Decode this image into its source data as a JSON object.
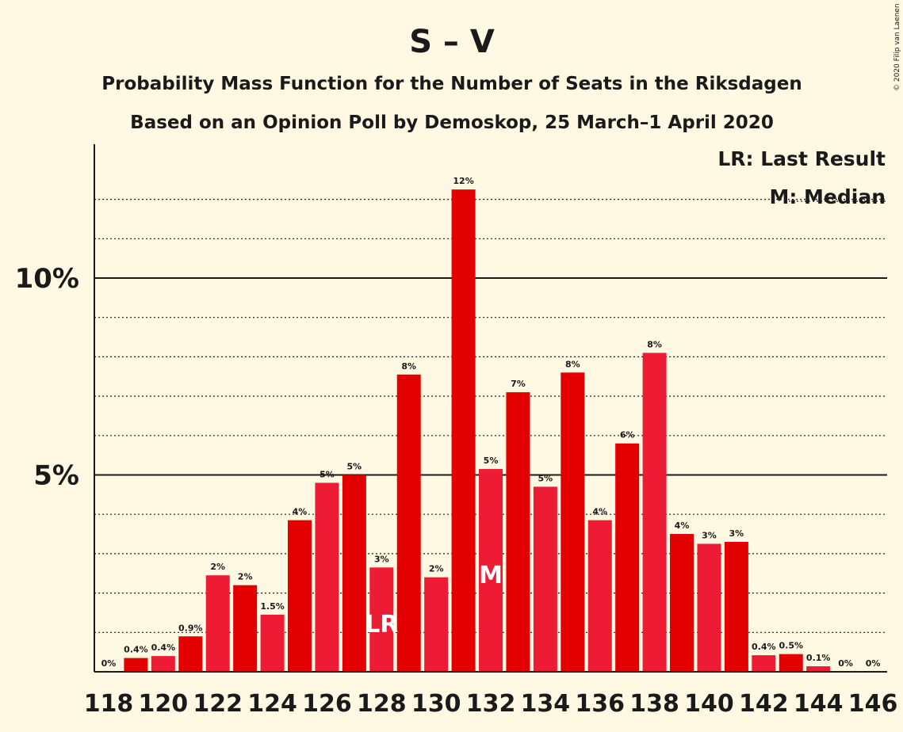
{
  "colors": {
    "background": "#fff8e2",
    "bar_dark": "#e30000",
    "bar_light": "#ee1b34",
    "text": "#1a1a1a",
    "marker_text": "#ffffff"
  },
  "copyright": "© 2020 Filip van Laenen",
  "chart_data": {
    "type": "bar",
    "title": "S – V",
    "subtitle": "Probability Mass Function for the Number of Seats in the Riksdagen",
    "subtitle2": "Based on an Opinion Poll by Demoskop, 25 March–1 April 2020",
    "xlabel": "",
    "ylabel": "",
    "ylim": [
      0,
      13.4
    ],
    "y_ticks": [
      {
        "value": 5,
        "label": "5%"
      },
      {
        "value": 10,
        "label": "10%"
      }
    ],
    "minor_gridlines": [
      1,
      2,
      3,
      4,
      6,
      7,
      8,
      9,
      11,
      12
    ],
    "legend_position": "top-right",
    "legend": [
      "LR: Last Result",
      "M: Median"
    ],
    "legend_line_dotted": "M: Median",
    "x_tick_labels": [
      "118",
      "120",
      "122",
      "124",
      "126",
      "128",
      "130",
      "132",
      "134",
      "136",
      "138",
      "140",
      "142",
      "144",
      "146"
    ],
    "categories": [
      118,
      119,
      120,
      121,
      122,
      123,
      124,
      125,
      126,
      127,
      128,
      129,
      130,
      131,
      132,
      133,
      134,
      135,
      136,
      137,
      138,
      139,
      140,
      141,
      142,
      143,
      144,
      145,
      146
    ],
    "values": [
      0,
      0.35,
      0.4,
      0.9,
      2.45,
      2.2,
      1.45,
      3.85,
      4.8,
      5.0,
      2.65,
      7.55,
      2.4,
      12.25,
      5.15,
      7.1,
      4.7,
      7.6,
      3.85,
      5.8,
      8.1,
      3.5,
      3.25,
      3.3,
      0.42,
      0.45,
      0.14,
      0,
      0
    ],
    "labels": [
      "0%",
      "0.4%",
      "0.4%",
      "0.9%",
      "2%",
      "2%",
      "1.5%",
      "4%",
      "5%",
      "5%",
      "3%",
      "8%",
      "2%",
      "12%",
      "5%",
      "7%",
      "5%",
      "8%",
      "4%",
      "6%",
      "8%",
      "4%",
      "3%",
      "3%",
      "0.4%",
      "0.5%",
      "0.1%",
      "0%",
      "0%"
    ],
    "markers": [
      {
        "seat": 128,
        "text": "LR"
      },
      {
        "seat": 132,
        "text": "M"
      }
    ]
  }
}
